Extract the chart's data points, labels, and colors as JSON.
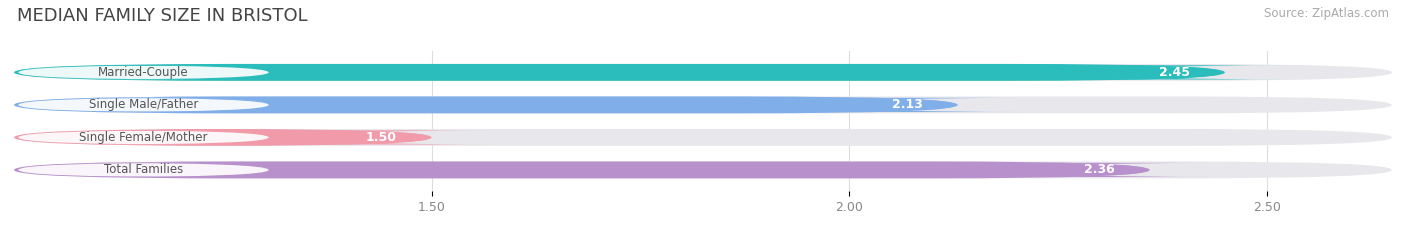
{
  "title": "MEDIAN FAMILY SIZE IN BRISTOL",
  "source": "Source: ZipAtlas.com",
  "categories": [
    "Married-Couple",
    "Single Male/Father",
    "Single Female/Mother",
    "Total Families"
  ],
  "values": [
    2.45,
    2.13,
    1.5,
    2.36
  ],
  "bar_colors": [
    "#2bbcbc",
    "#7faee8",
    "#f09aaa",
    "#b890cc"
  ],
  "bar_bg_color": "#e8e8ec",
  "xmin": 1.0,
  "xmax": 2.65,
  "xticks": [
    1.5,
    2.0,
    2.5
  ],
  "bar_height": 0.52,
  "label_fontsize": 8.5,
  "value_fontsize": 9,
  "title_fontsize": 13,
  "source_fontsize": 8.5,
  "bg_color": "#ffffff",
  "label_pill_color": "#ffffff",
  "label_text_color": "#555555"
}
